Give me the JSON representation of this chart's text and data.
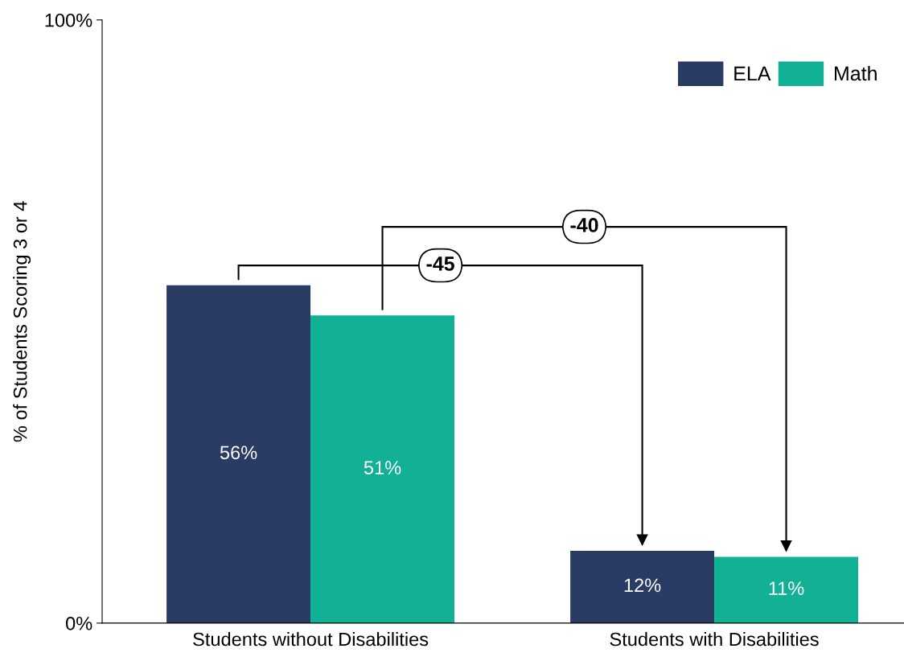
{
  "chart_data": {
    "type": "bar",
    "ylabel": "% of Students Scoring 3 or 4",
    "categories": [
      "Students without Disabilities",
      "Students with Disabilities"
    ],
    "series": [
      {
        "name": "ELA",
        "color": "#2a3c63",
        "values": [
          56,
          12
        ]
      },
      {
        "name": "Math",
        "color": "#12b094",
        "values": [
          51,
          11
        ]
      }
    ],
    "ylim": [
      0,
      100
    ],
    "yticks": [
      {
        "value": 0,
        "label": "0%"
      },
      {
        "value": 100,
        "label": "100%"
      }
    ],
    "value_labels": [
      [
        "56%",
        "12%"
      ],
      [
        "51%",
        "11%"
      ]
    ],
    "annotations": [
      "-45",
      "-40"
    ],
    "grid": false,
    "legend": "top right"
  }
}
